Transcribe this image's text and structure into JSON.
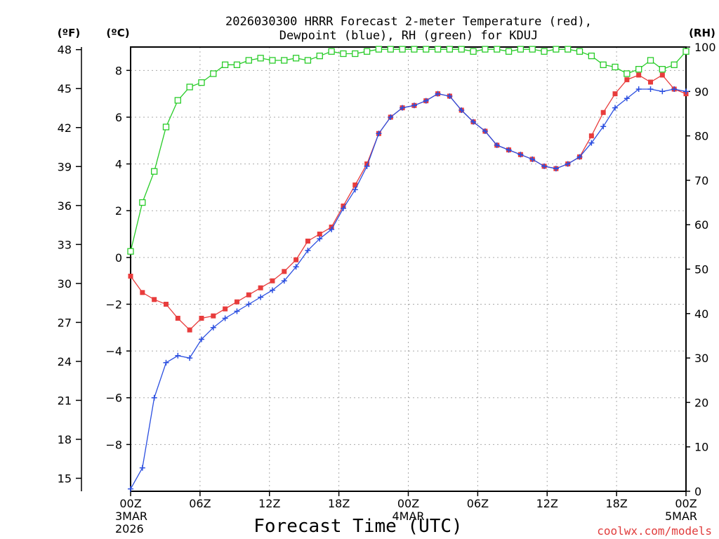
{
  "chart_data": {
    "type": "line",
    "title_line1": "2026030300 HRRR Forecast 2-meter Temperature (red),",
    "title_line2": "Dewpoint (blue), RH (green) for KDUJ",
    "xlabel": "Forecast Time (UTC)",
    "credit": "coolwx.com/models",
    "units": {
      "fahrenheit": "(ºF)",
      "celsius": "(ºC)",
      "rh": "(RH)"
    },
    "x_range": [
      0,
      48
    ],
    "x_ticks": [
      {
        "hour": 0,
        "line1": "00Z",
        "line2": "3MAR",
        "line3": "2026"
      },
      {
        "hour": 6,
        "line1": "06Z"
      },
      {
        "hour": 12,
        "line1": "12Z"
      },
      {
        "hour": 18,
        "line1": "18Z"
      },
      {
        "hour": 24,
        "line1": "00Z",
        "line2": "4MAR"
      },
      {
        "hour": 30,
        "line1": "06Z"
      },
      {
        "hour": 36,
        "line1": "12Z"
      },
      {
        "hour": 42,
        "line1": "18Z"
      },
      {
        "hour": 48,
        "line1": "00Z",
        "line2": "5MAR"
      }
    ],
    "celsius_axis": {
      "range": [
        -10,
        9.0
      ],
      "ticks": [
        -8,
        -6,
        -4,
        -2,
        0,
        2,
        4,
        6,
        8
      ]
    },
    "fahrenheit_ticks": [
      15,
      18,
      21,
      24,
      27,
      30,
      33,
      36,
      39,
      42,
      45,
      48
    ],
    "rh_axis": {
      "range": [
        0,
        100
      ],
      "ticks": [
        0,
        10,
        20,
        30,
        40,
        50,
        60,
        70,
        80,
        90,
        100
      ]
    },
    "colors": {
      "temperature": "#e83c3c",
      "dewpoint": "#2a4ee0",
      "rh": "#28cc28"
    },
    "series": [
      {
        "name": "Temperature",
        "unit": "C",
        "values": [
          -0.8,
          -1.5,
          -1.8,
          -2.0,
          -2.6,
          -3.1,
          -2.6,
          -2.5,
          -2.2,
          -1.9,
          -1.6,
          -1.3,
          -1.0,
          -0.6,
          -0.1,
          0.7,
          1.0,
          1.3,
          2.2,
          3.1,
          4.0,
          5.3,
          6.0,
          6.4,
          6.5,
          6.7,
          7.0,
          6.9,
          6.3,
          5.8,
          5.4,
          4.8,
          4.6,
          4.4,
          4.2,
          3.9,
          3.8,
          4.0,
          4.3,
          5.2,
          6.2,
          7.0,
          7.6,
          7.8,
          7.5,
          7.8,
          7.2,
          7.0
        ]
      },
      {
        "name": "Dewpoint",
        "unit": "C",
        "values": [
          -9.9,
          -9.0,
          -6.0,
          -4.5,
          -4.2,
          -4.3,
          -3.5,
          -3.0,
          -2.6,
          -2.3,
          -2.0,
          -1.7,
          -1.4,
          -1.0,
          -0.4,
          0.3,
          0.8,
          1.2,
          2.1,
          2.9,
          3.9,
          5.3,
          6.0,
          6.4,
          6.5,
          6.7,
          7.0,
          6.9,
          6.3,
          5.8,
          5.4,
          4.8,
          4.6,
          4.4,
          4.2,
          3.9,
          3.8,
          4.0,
          4.3,
          4.9,
          5.6,
          6.4,
          6.8,
          7.2,
          7.2,
          7.1,
          7.2,
          7.1
        ]
      },
      {
        "name": "RH",
        "unit": "%",
        "values": [
          54,
          65,
          72,
          82,
          88,
          91,
          92,
          94,
          96,
          96,
          97,
          97.5,
          97,
          97,
          97.5,
          97,
          98,
          99,
          98.5,
          98.5,
          99,
          99.5,
          99.5,
          99.5,
          99.5,
          99.5,
          99.5,
          99.5,
          99.5,
          99,
          99.5,
          99.5,
          99,
          99.5,
          99.5,
          99,
          99.5,
          99.5,
          99,
          98,
          96,
          95.5,
          94,
          95,
          97,
          95,
          96,
          99
        ]
      }
    ]
  }
}
